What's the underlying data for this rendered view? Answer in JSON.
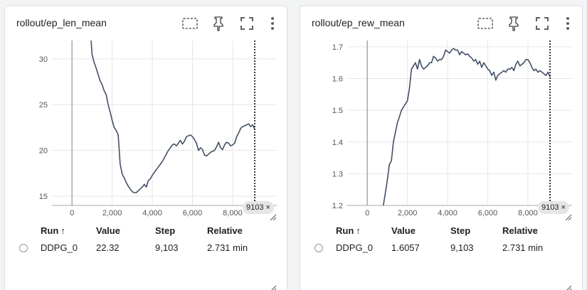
{
  "colors": {
    "series": "#425066",
    "axis": "#a8a8a8",
    "grid": "#e6e6e6",
    "cursor": "#333333"
  },
  "icons": [
    "fit-domain-icon",
    "pin-icon",
    "fullscreen-icon",
    "more-vert-icon"
  ],
  "table_headers": {
    "run": "Run",
    "sort": "↑",
    "value": "Value",
    "step": "Step",
    "relative": "Relative"
  },
  "cards": [
    {
      "title": "rollout/ep_len_mean",
      "step_chip": "9103",
      "close": "×",
      "row": {
        "run": "DDPG_0",
        "value": "22.32",
        "step": "9,103",
        "relative": "2.731 min"
      }
    },
    {
      "title": "rollout/ep_rew_mean",
      "step_chip": "9103",
      "close": "×",
      "row": {
        "run": "DDPG_0",
        "value": "1.6057",
        "step": "9,103",
        "relative": "2.731 min"
      }
    }
  ],
  "chart_data": [
    {
      "type": "line",
      "title": "rollout/ep_len_mean",
      "xlabel": "",
      "ylabel": "",
      "xlim": [
        -1000,
        10200
      ],
      "ylim": [
        14,
        32
      ],
      "x_ticks": [
        0,
        2000,
        4000,
        6000,
        8000
      ],
      "x_tick_labels": [
        "0",
        "2,000",
        "4,000",
        "6,000",
        "8,000"
      ],
      "y_ticks": [
        15,
        20,
        25,
        30
      ],
      "y_tick_labels": [
        "15",
        "20",
        "25",
        "30"
      ],
      "series": [
        {
          "x": [
            800,
            900,
            1000,
            1100,
            1200,
            1300,
            1400,
            1500,
            1600,
            1700,
            1800,
            1900,
            2000,
            2100,
            2200,
            2300,
            2400,
            2500,
            2600,
            2700,
            2800,
            2900,
            3000,
            3100,
            3200,
            3300,
            3400,
            3500,
            3600,
            3700,
            3800,
            3900,
            4000,
            4100,
            4200,
            4300,
            4400,
            4500,
            4600,
            4700,
            4800,
            4900,
            5000,
            5100,
            5200,
            5300,
            5400,
            5500,
            5600,
            5700,
            5800,
            5900,
            6000,
            6100,
            6200,
            6300,
            6400,
            6500,
            6600,
            6700,
            6800,
            6900,
            7000,
            7100,
            7200,
            7300,
            7400,
            7500,
            7600,
            7700,
            7800,
            7900,
            8000,
            8100,
            8200,
            8300,
            8400,
            8500,
            8600,
            8700,
            8800,
            8900,
            9000,
            9103
          ],
          "y": [
            36.0,
            33.5,
            30.5,
            29.6,
            29.0,
            28.3,
            27.6,
            27.2,
            26.5,
            26.1,
            25.0,
            24.2,
            23.3,
            22.5,
            22.2,
            21.7,
            18.5,
            17.4,
            17.0,
            16.5,
            16.1,
            15.8,
            15.5,
            15.4,
            15.4,
            15.6,
            15.8,
            16.0,
            16.3,
            16.0,
            16.7,
            16.9,
            17.3,
            17.6,
            17.9,
            18.2,
            18.5,
            18.8,
            19.2,
            19.6,
            20.0,
            20.3,
            20.6,
            20.7,
            20.5,
            20.8,
            21.1,
            20.7,
            21.0,
            21.5,
            21.6,
            21.7,
            21.5,
            21.2,
            20.8,
            20.0,
            20.3,
            20.1,
            19.5,
            19.4,
            19.6,
            19.8,
            19.9,
            20.0,
            20.4,
            20.9,
            20.3,
            20.1,
            20.6,
            20.9,
            20.8,
            20.5,
            20.6,
            20.8,
            21.5,
            21.9,
            22.4,
            22.6,
            22.7,
            22.8,
            22.9,
            22.6,
            22.8,
            22.32
          ]
        }
      ]
    },
    {
      "type": "line",
      "title": "rollout/ep_rew_mean",
      "xlabel": "",
      "ylabel": "",
      "xlim": [
        -1000,
        10200
      ],
      "ylim": [
        1.2,
        1.72
      ],
      "x_ticks": [
        0,
        2000,
        4000,
        6000,
        8000
      ],
      "x_tick_labels": [
        "0",
        "2,000",
        "4,000",
        "6,000",
        "8,000"
      ],
      "y_ticks": [
        1.2,
        1.3,
        1.4,
        1.5,
        1.6,
        1.7
      ],
      "y_tick_labels": [
        "1.2",
        "1.3",
        "1.4",
        "1.5",
        "1.6",
        "1.7"
      ],
      "series": [
        {
          "x": [
            700,
            800,
            900,
            1000,
            1100,
            1200,
            1300,
            1400,
            1500,
            1600,
            1700,
            1800,
            1900,
            2000,
            2100,
            2200,
            2300,
            2400,
            2500,
            2600,
            2700,
            2800,
            2900,
            3000,
            3100,
            3200,
            3300,
            3400,
            3500,
            3600,
            3700,
            3800,
            3900,
            4000,
            4100,
            4200,
            4300,
            4400,
            4500,
            4600,
            4700,
            4800,
            4900,
            5000,
            5100,
            5200,
            5300,
            5400,
            5500,
            5600,
            5700,
            5800,
            5900,
            6000,
            6100,
            6200,
            6300,
            6400,
            6500,
            6600,
            6700,
            6800,
            6900,
            7000,
            7100,
            7200,
            7300,
            7400,
            7500,
            7600,
            7700,
            7800,
            7900,
            8000,
            8100,
            8200,
            8300,
            8400,
            8500,
            8600,
            8700,
            8800,
            8900,
            9000,
            9103
          ],
          "y": [
            1.17,
            1.2,
            1.24,
            1.28,
            1.33,
            1.34,
            1.4,
            1.43,
            1.46,
            1.48,
            1.5,
            1.51,
            1.52,
            1.53,
            1.57,
            1.63,
            1.64,
            1.65,
            1.63,
            1.66,
            1.64,
            1.63,
            1.635,
            1.64,
            1.65,
            1.65,
            1.67,
            1.665,
            1.655,
            1.66,
            1.66,
            1.67,
            1.69,
            1.685,
            1.68,
            1.69,
            1.695,
            1.69,
            1.69,
            1.675,
            1.685,
            1.68,
            1.675,
            1.678,
            1.67,
            1.665,
            1.655,
            1.66,
            1.645,
            1.655,
            1.635,
            1.65,
            1.64,
            1.63,
            1.625,
            1.61,
            1.62,
            1.595,
            1.61,
            1.615,
            1.62,
            1.625,
            1.62,
            1.63,
            1.63,
            1.635,
            1.625,
            1.645,
            1.655,
            1.64,
            1.645,
            1.65,
            1.66,
            1.66,
            1.65,
            1.635,
            1.625,
            1.63,
            1.62,
            1.625,
            1.62,
            1.615,
            1.61,
            1.62,
            1.6057
          ]
        }
      ]
    }
  ]
}
